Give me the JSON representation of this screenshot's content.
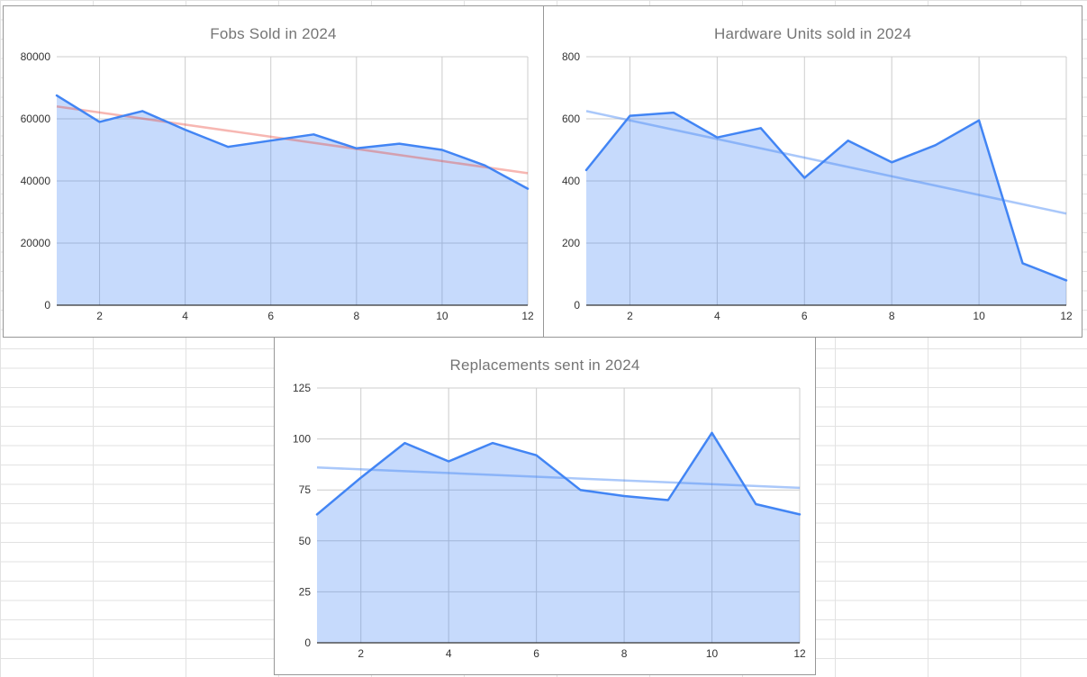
{
  "app": {
    "surface": "spreadsheet-grid-background"
  },
  "colors": {
    "series_line": "#4285f4",
    "series_fill": "rgba(66,133,244,0.30)",
    "trend_pink": "rgba(234,67,53,0.38)",
    "trend_blue": "rgba(66,133,244,0.45)",
    "gridline": "#cccccc",
    "axis_line": "#333333",
    "tick_label": "#333333",
    "title_text": "#757575",
    "sheet_gridline": "#e2e2e2",
    "card_border": "#979797"
  },
  "chart_data": [
    {
      "type": "area",
      "title": "Fobs Sold in 2024",
      "xlabel": "",
      "ylabel": "",
      "x": [
        1,
        2,
        3,
        4,
        5,
        6,
        7,
        8,
        9,
        10,
        11,
        12
      ],
      "values": [
        67500,
        59000,
        62500,
        56500,
        51000,
        53000,
        55000,
        50500,
        52000,
        50000,
        45000,
        37500
      ],
      "trendline": {
        "start": 64000,
        "end": 42500,
        "color": "rgba(234,67,53,0.38)"
      },
      "ylim": [
        0,
        80000
      ],
      "yticks": [
        0,
        20000,
        40000,
        60000,
        80000
      ],
      "xticks": [
        2,
        4,
        6,
        8,
        10,
        12
      ],
      "grid": true,
      "legend": "none",
      "line_color": "#4285f4",
      "fill_color": "rgba(66,133,244,0.30)"
    },
    {
      "type": "area",
      "title": "Hardware Units sold in 2024",
      "xlabel": "",
      "ylabel": "",
      "x": [
        1,
        2,
        3,
        4,
        5,
        6,
        7,
        8,
        9,
        10,
        11,
        12
      ],
      "values": [
        435,
        610,
        620,
        540,
        570,
        410,
        530,
        460,
        515,
        595,
        135,
        80
      ],
      "trendline": {
        "start": 625,
        "end": 295,
        "color": "rgba(66,133,244,0.45)"
      },
      "ylim": [
        0,
        800
      ],
      "yticks": [
        0,
        200,
        400,
        600,
        800
      ],
      "xticks": [
        2,
        4,
        6,
        8,
        10,
        12
      ],
      "grid": true,
      "legend": "none",
      "line_color": "#4285f4",
      "fill_color": "rgba(66,133,244,0.30)"
    },
    {
      "type": "area",
      "title": "Replacements sent in 2024",
      "xlabel": "",
      "ylabel": "",
      "x": [
        1,
        2,
        3,
        4,
        5,
        6,
        7,
        8,
        9,
        10,
        11,
        12
      ],
      "values": [
        63,
        81,
        98,
        89,
        98,
        92,
        75,
        72,
        70,
        103,
        68,
        63
      ],
      "trendline": {
        "start": 86,
        "end": 76,
        "color": "rgba(66,133,244,0.45)"
      },
      "ylim": [
        0,
        125
      ],
      "yticks": [
        0,
        25,
        50,
        75,
        100,
        125
      ],
      "xticks": [
        2,
        4,
        6,
        8,
        10,
        12
      ],
      "grid": true,
      "legend": "none",
      "line_color": "#4285f4",
      "fill_color": "rgba(66,133,244,0.30)"
    }
  ]
}
